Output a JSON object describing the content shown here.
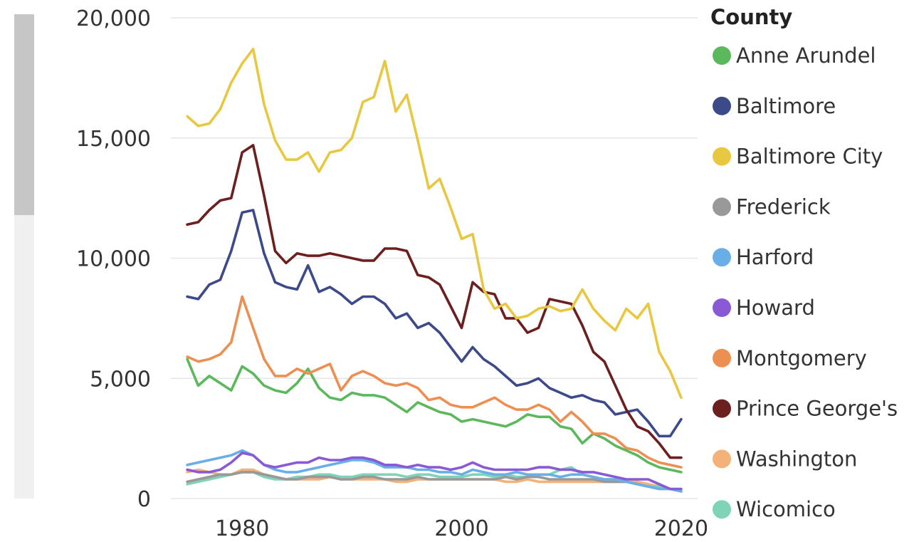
{
  "chart_data": {
    "type": "line",
    "title": "",
    "xlabel": "",
    "ylabel": "",
    "xlim": [
      1973.5,
      2021.5
    ],
    "ylim": [
      0,
      20000
    ],
    "x_ticks": [
      1980,
      2000,
      2020
    ],
    "x_tick_labels": [
      "1980",
      "2000",
      "2020"
    ],
    "y_ticks": [
      0,
      5000,
      10000,
      15000,
      20000
    ],
    "y_tick_labels": [
      "0",
      "5,000",
      "10,000",
      "15,000",
      "20,000"
    ],
    "grid": true,
    "legend": {
      "title": "County",
      "position": "right"
    },
    "x": [
      1975,
      1976,
      1977,
      1978,
      1979,
      1980,
      1981,
      1982,
      1983,
      1984,
      1985,
      1986,
      1987,
      1988,
      1989,
      1990,
      1991,
      1992,
      1993,
      1994,
      1995,
      1996,
      1997,
      1998,
      1999,
      2000,
      2001,
      2002,
      2003,
      2004,
      2005,
      2006,
      2007,
      2008,
      2009,
      2010,
      2011,
      2012,
      2013,
      2014,
      2015,
      2016,
      2017,
      2018,
      2019,
      2020
    ],
    "series": [
      {
        "name": "Anne Arundel",
        "color": "#5cb85c",
        "values": [
          5800,
          4700,
          5100,
          4800,
          4500,
          5500,
          5200,
          4700,
          4500,
          4400,
          4800,
          5400,
          4600,
          4200,
          4100,
          4400,
          4300,
          4300,
          4200,
          3900,
          3600,
          4000,
          3800,
          3600,
          3500,
          3200,
          3300,
          3200,
          3100,
          3000,
          3200,
          3500,
          3400,
          3400,
          3000,
          2900,
          2300,
          2700,
          2500,
          2200,
          2000,
          1800,
          1500,
          1300,
          1200,
          1100
        ]
      },
      {
        "name": "Baltimore",
        "color": "#3d4a8a",
        "values": [
          8400,
          8300,
          8900,
          9100,
          10300,
          11900,
          12000,
          10200,
          9000,
          8800,
          8700,
          9700,
          8600,
          8800,
          8500,
          8100,
          8400,
          8400,
          8100,
          7500,
          7700,
          7100,
          7300,
          6900,
          6300,
          5700,
          6300,
          5800,
          5500,
          5100,
          4700,
          4800,
          5000,
          4600,
          4400,
          4200,
          4300,
          4100,
          4000,
          3500,
          3600,
          3700,
          3200,
          2600,
          2600,
          3300
        ]
      },
      {
        "name": "Baltimore City",
        "color": "#e8c741",
        "values": [
          15900,
          15500,
          15600,
          16200,
          17300,
          18100,
          18700,
          16400,
          14900,
          14100,
          14100,
          14400,
          13600,
          14400,
          14500,
          15000,
          16500,
          16700,
          18200,
          16100,
          16800,
          14900,
          12900,
          13300,
          12100,
          10800,
          11000,
          8700,
          7900,
          8100,
          7500,
          7600,
          7900,
          8000,
          7800,
          7900,
          8700,
          7900,
          7400,
          7000,
          7900,
          7500,
          8100,
          6100,
          5300,
          4200
        ]
      },
      {
        "name": "Frederick",
        "color": "#999999",
        "values": [
          700,
          800,
          900,
          1000,
          1000,
          1100,
          1100,
          1000,
          900,
          800,
          800,
          900,
          900,
          900,
          800,
          800,
          900,
          900,
          800,
          800,
          800,
          900,
          800,
          800,
          800,
          800,
          800,
          800,
          800,
          900,
          800,
          900,
          900,
          800,
          800,
          800,
          800,
          800,
          700,
          700,
          700,
          600,
          500,
          400,
          400,
          300
        ]
      },
      {
        "name": "Harford",
        "color": "#6aaee8",
        "values": [
          1400,
          1500,
          1600,
          1700,
          1800,
          2000,
          1800,
          1400,
          1200,
          1100,
          1100,
          1200,
          1300,
          1400,
          1500,
          1600,
          1600,
          1500,
          1300,
          1300,
          1300,
          1200,
          1200,
          1100,
          1100,
          1000,
          1200,
          1100,
          1000,
          1000,
          1100,
          1000,
          1000,
          1000,
          900,
          1000,
          1000,
          900,
          800,
          800,
          700,
          600,
          500,
          400,
          400,
          300
        ]
      },
      {
        "name": "Howard",
        "color": "#8a5ad6",
        "values": [
          1200,
          1100,
          1100,
          1200,
          1500,
          1900,
          1800,
          1400,
          1300,
          1400,
          1500,
          1500,
          1700,
          1600,
          1600,
          1700,
          1700,
          1600,
          1400,
          1400,
          1300,
          1400,
          1300,
          1300,
          1200,
          1300,
          1500,
          1300,
          1200,
          1200,
          1200,
          1200,
          1300,
          1300,
          1200,
          1200,
          1100,
          1100,
          1000,
          900,
          800,
          800,
          800,
          600,
          400,
          400
        ]
      },
      {
        "name": "Montgomery",
        "color": "#ed8f52",
        "values": [
          5900,
          5700,
          5800,
          6000,
          6500,
          8400,
          7100,
          5800,
          5100,
          5100,
          5400,
          5200,
          5400,
          5600,
          4500,
          5100,
          5300,
          5100,
          4800,
          4700,
          4800,
          4600,
          4100,
          4200,
          3900,
          3800,
          3800,
          4000,
          4200,
          3900,
          3700,
          3700,
          3900,
          3700,
          3200,
          3600,
          3200,
          2700,
          2700,
          2500,
          2100,
          2000,
          1700,
          1500,
          1400,
          1300
        ]
      },
      {
        "name": "Prince George's",
        "color": "#6b1f1f",
        "values": [
          11400,
          11500,
          12000,
          12400,
          12500,
          14400,
          14700,
          12600,
          10300,
          9800,
          10200,
          10100,
          10100,
          10200,
          10100,
          10000,
          9900,
          9900,
          10400,
          10400,
          10300,
          9300,
          9200,
          8900,
          8000,
          7100,
          9000,
          8600,
          8500,
          7500,
          7500,
          6900,
          7100,
          8300,
          8200,
          8100,
          7200,
          6100,
          5700,
          4700,
          3700,
          3000,
          2800,
          2300,
          1700,
          1700
        ]
      },
      {
        "name": "Washington",
        "color": "#f3b27a",
        "values": [
          1100,
          1200,
          1100,
          1000,
          1000,
          1200,
          1200,
          1000,
          900,
          800,
          800,
          800,
          800,
          900,
          800,
          800,
          800,
          800,
          800,
          700,
          700,
          800,
          800,
          800,
          800,
          800,
          800,
          800,
          800,
          700,
          700,
          800,
          700,
          700,
          700,
          700,
          700,
          700,
          700,
          700,
          700,
          700,
          600,
          500,
          400,
          300
        ]
      },
      {
        "name": "Wicomico",
        "color": "#7fd3b7",
        "values": [
          600,
          700,
          800,
          900,
          1000,
          1100,
          1100,
          900,
          800,
          800,
          900,
          900,
          1000,
          1000,
          900,
          900,
          1000,
          1000,
          1000,
          1000,
          900,
          1000,
          1000,
          900,
          900,
          900,
          1000,
          1000,
          900,
          1000,
          900,
          900,
          1000,
          1000,
          1200,
          1300,
          1000,
          900,
          800,
          800,
          700,
          600,
          500,
          500,
          400,
          300
        ]
      }
    ]
  }
}
